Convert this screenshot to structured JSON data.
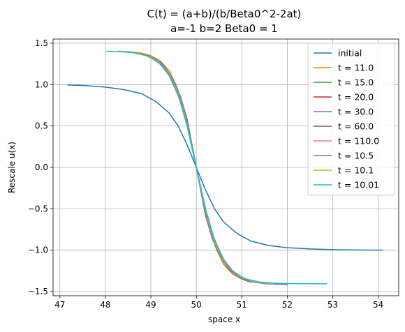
{
  "chart_data": {
    "type": "line",
    "title": "C(t) = (a+b)/(b/Beta0^2-2at)",
    "subtitle": "a=-1 b=2 Beta0 = 1",
    "xlabel": "space x",
    "ylabel": "Rescale u(x)",
    "xlim": [
      46.85,
      54.45
    ],
    "ylim": [
      -1.55,
      1.55
    ],
    "xticks": [
      47,
      48,
      49,
      50,
      51,
      52,
      53,
      54
    ],
    "yticks": [
      -1.5,
      -1.0,
      -0.5,
      0.0,
      0.5,
      1.0,
      1.5
    ],
    "xtick_labels": [
      "47",
      "48",
      "49",
      "50",
      "51",
      "52",
      "53",
      "54"
    ],
    "ytick_labels": [
      "−1.5",
      "−1.0",
      "−0.5",
      "0.0",
      "0.5",
      "1.0",
      "1.5"
    ],
    "grid": true,
    "legend_position": "top-right",
    "series": [
      {
        "name": "initial",
        "color": "#1f77b4",
        "x": [
          47.17,
          47.5,
          48.0,
          48.4,
          48.8,
          49.1,
          49.4,
          49.6,
          49.8,
          50.0,
          50.2,
          50.4,
          50.6,
          50.9,
          51.2,
          51.6,
          52.0,
          52.5,
          53.0,
          53.5,
          54.1
        ],
        "y": [
          0.995,
          0.99,
          0.97,
          0.94,
          0.89,
          0.8,
          0.66,
          0.5,
          0.27,
          0.0,
          -0.27,
          -0.5,
          -0.66,
          -0.8,
          -0.89,
          -0.945,
          -0.97,
          -0.985,
          -0.993,
          -0.997,
          -0.999
        ]
      },
      {
        "name": "t = 11.0",
        "color": "#ff7f0e",
        "x": [
          48.55,
          48.8,
          49.0,
          49.2,
          49.4,
          49.55,
          49.7,
          49.85,
          50.0,
          50.15,
          50.3,
          50.45,
          50.6,
          50.8,
          51.0,
          51.2,
          51.45
        ],
        "y": [
          1.395,
          1.38,
          1.35,
          1.29,
          1.17,
          1.0,
          0.77,
          0.42,
          0.0,
          -0.42,
          -0.77,
          -1.0,
          -1.17,
          -1.29,
          -1.35,
          -1.38,
          -1.395
        ]
      },
      {
        "name": "t = 15.0",
        "color": "#2ca02c",
        "x": [
          49.2,
          49.3,
          49.4,
          49.55,
          49.7,
          49.85,
          50.0,
          50.15,
          50.3,
          50.45,
          50.6,
          50.7,
          50.8,
          50.95,
          51.1,
          51.2
        ],
        "y": [
          1.28,
          1.22,
          1.14,
          0.98,
          0.75,
          0.41,
          0.0,
          -0.41,
          -0.75,
          -0.98,
          -1.14,
          -1.22,
          -1.27,
          -1.33,
          -1.37,
          -1.385
        ]
      },
      {
        "name": "t = 20.0",
        "color": "#d62728",
        "x": [
          49.2,
          49.3,
          49.4,
          49.5,
          49.6,
          49.7,
          49.85,
          50.0,
          50.15,
          50.3,
          50.4,
          50.5,
          50.6,
          50.7,
          50.8,
          50.9,
          51.0,
          51.2,
          51.5,
          51.8,
          52.0
        ],
        "y": [
          1.25,
          1.2,
          1.13,
          1.02,
          0.89,
          0.72,
          0.39,
          0.0,
          -0.39,
          -0.72,
          -0.89,
          -1.02,
          -1.13,
          -1.2,
          -1.26,
          -1.3,
          -1.33,
          -1.37,
          -1.4,
          -1.408,
          -1.41
        ]
      },
      {
        "name": "t = 30.0",
        "color": "#9467bd",
        "x": [
          49.22,
          49.3,
          49.4,
          49.5,
          49.6,
          49.7,
          49.85,
          50.0,
          50.15,
          50.3,
          50.4,
          50.5,
          50.6,
          50.7,
          50.8,
          50.9,
          51.0,
          51.2,
          51.5,
          51.8,
          52.0
        ],
        "y": [
          1.24,
          1.2,
          1.14,
          1.04,
          0.91,
          0.74,
          0.4,
          0.0,
          -0.4,
          -0.74,
          -0.91,
          -1.04,
          -1.14,
          -1.21,
          -1.27,
          -1.31,
          -1.34,
          -1.38,
          -1.405,
          -1.412,
          -1.414
        ]
      },
      {
        "name": "t = 60.0",
        "color": "#8c564b",
        "x": [
          48.35,
          48.6,
          48.8,
          49.0,
          49.2,
          49.4,
          49.55,
          49.7,
          49.85,
          50.0,
          50.15,
          50.3,
          50.45,
          50.6,
          50.8,
          51.0,
          51.3,
          51.65
        ],
        "y": [
          1.4,
          1.39,
          1.37,
          1.33,
          1.25,
          1.11,
          0.93,
          0.73,
          0.4,
          0.0,
          -0.4,
          -0.73,
          -0.93,
          -1.11,
          -1.25,
          -1.33,
          -1.39,
          -1.4
        ]
      },
      {
        "name": "t = 110.0",
        "color": "#e377c2",
        "x": [
          48.4,
          48.6,
          48.8,
          49.0,
          49.2,
          49.4,
          49.55,
          49.7,
          49.85,
          50.0,
          50.15,
          50.3,
          50.45,
          50.6,
          50.8,
          51.0,
          51.3,
          51.6
        ],
        "y": [
          1.4,
          1.39,
          1.37,
          1.33,
          1.25,
          1.11,
          0.93,
          0.73,
          0.4,
          0.0,
          -0.4,
          -0.73,
          -0.93,
          -1.11,
          -1.25,
          -1.33,
          -1.39,
          -1.4
        ]
      },
      {
        "name": "t = 10.5",
        "color": "#7f7f7f",
        "x": [
          48.45,
          48.7,
          48.9,
          49.1,
          49.3,
          49.5,
          49.65,
          49.8,
          50.0,
          50.2,
          50.35,
          50.5,
          50.7,
          50.9,
          51.1,
          51.3,
          51.55
        ],
        "y": [
          1.4,
          1.385,
          1.36,
          1.31,
          1.22,
          1.05,
          0.86,
          0.58,
          0.0,
          -0.58,
          -0.86,
          -1.05,
          -1.22,
          -1.31,
          -1.36,
          -1.385,
          -1.4
        ]
      },
      {
        "name": "t = 10.1",
        "color": "#bcbd22",
        "x": [
          48.3,
          48.6,
          48.8,
          49.0,
          49.2,
          49.4,
          49.6,
          49.8,
          50.0,
          50.2,
          50.4,
          50.6,
          50.8,
          51.0,
          51.2,
          51.4,
          51.7
        ],
        "y": [
          1.405,
          1.39,
          1.37,
          1.33,
          1.26,
          1.13,
          0.9,
          0.5,
          0.0,
          -0.5,
          -0.9,
          -1.13,
          -1.26,
          -1.33,
          -1.37,
          -1.39,
          -1.405
        ]
      },
      {
        "name": "t = 10.01",
        "color": "#17becf",
        "x": [
          48.03,
          48.3,
          48.6,
          48.9,
          49.2,
          49.4,
          49.6,
          49.8,
          50.0,
          50.2,
          50.4,
          50.6,
          50.8,
          51.1,
          51.4,
          51.7,
          52.0,
          52.4,
          52.87
        ],
        "y": [
          1.403,
          1.398,
          1.385,
          1.35,
          1.26,
          1.12,
          0.88,
          0.49,
          0.0,
          -0.49,
          -0.88,
          -1.12,
          -1.26,
          -1.35,
          -1.385,
          -1.398,
          -1.403,
          -1.405,
          -1.406
        ]
      }
    ]
  }
}
